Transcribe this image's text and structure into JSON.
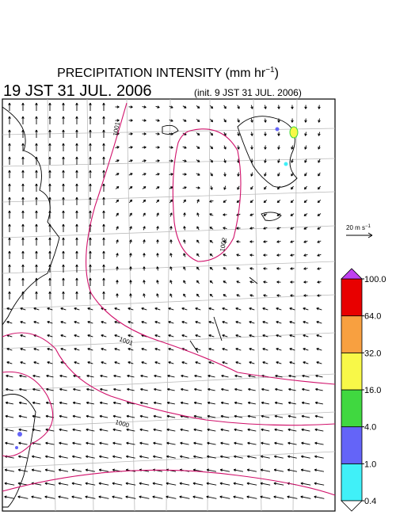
{
  "header": {
    "title": "PRECIPITATION INTENSITY (mm hr",
    "title_exponent": "−1",
    "title_close": ")",
    "valid_time": "19 JST 31 JUL. 2006",
    "init_time": "(init. 9 JST 31 JUL. 2006)"
  },
  "wind_scale": {
    "label": "20 m s",
    "exponent": "−1"
  },
  "contour_labels": [
    "1001",
    "1002",
    "1001",
    "1000"
  ],
  "colorbar": {
    "ticks": [
      {
        "value": 0.4,
        "label": "0.4"
      },
      {
        "value": 1,
        "label": "1.0"
      },
      {
        "value": 4,
        "label": "4.0"
      },
      {
        "value": 16,
        "label": "16.0"
      },
      {
        "value": 32,
        "label": "32.0"
      },
      {
        "value": 64,
        "label": "64.0"
      },
      {
        "value": 100,
        "label": "100.0"
      }
    ],
    "colors": [
      "#40f0f8",
      "#6464f8",
      "#40d840",
      "#f8f848",
      "#f8a040",
      "#e80000"
    ],
    "over_color": "#c040f0",
    "under_color": "#ffffff"
  }
}
